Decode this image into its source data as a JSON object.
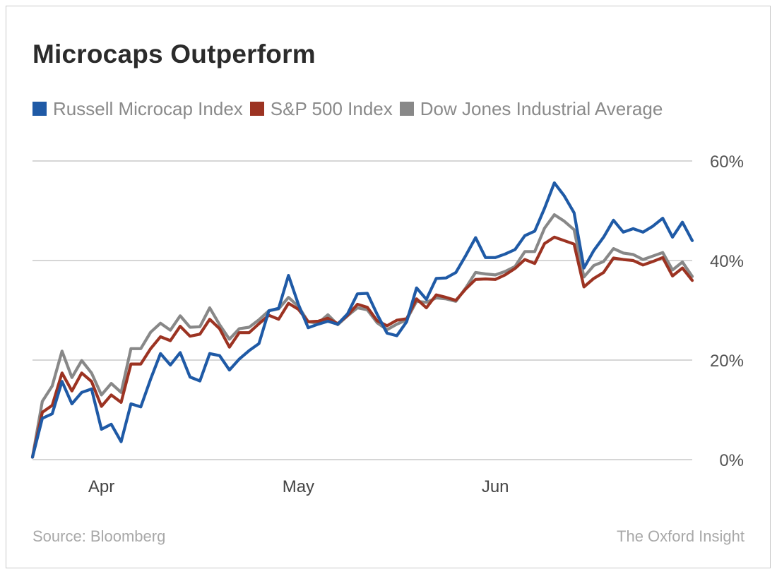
{
  "title": "Microcaps Outperform",
  "footer": {
    "source": "Source: Bloomberg",
    "brand": "The Oxford Insight"
  },
  "chart_data": {
    "type": "line",
    "title": "Microcaps Outperform",
    "xlabel": "",
    "ylabel": "",
    "ylim": [
      0,
      60
    ],
    "y_ticks": [
      0,
      20,
      40,
      60
    ],
    "y_tick_labels": [
      "0%",
      "20%",
      "40%",
      "60%"
    ],
    "x_tick_labels": [
      "Apr",
      "May",
      "Jun"
    ],
    "x_tick_indices": [
      7,
      27,
      47
    ],
    "legend_position": "top",
    "grid": true,
    "series": [
      {
        "name": "Dow Jones Industrial Average",
        "color": "#888888",
        "values": [
          0.5,
          11.7,
          14.8,
          21.8,
          16.5,
          19.9,
          17.4,
          13.0,
          15.3,
          13.5,
          22.3,
          22.3,
          25.6,
          27.4,
          26.0,
          28.9,
          26.6,
          26.7,
          30.5,
          27.1,
          24.2,
          26.3,
          26.6,
          28.1,
          29.9,
          30.3,
          32.6,
          30.8,
          27.7,
          27.4,
          29.1,
          27.1,
          28.9,
          30.5,
          30.1,
          27.5,
          26.1,
          27.2,
          28.1,
          31.8,
          31.6,
          32.5,
          32.3,
          31.8,
          34.5,
          37.6,
          37.3,
          37.1,
          37.8,
          38.8,
          41.8,
          41.8,
          46.5,
          49.2,
          47.9,
          46.2,
          36.7,
          39.0,
          39.8,
          42.4,
          41.5,
          41.2,
          40.2,
          40.9,
          41.6,
          38.1,
          39.7,
          36.8
        ]
      },
      {
        "name": "S&P 500 Index",
        "color": "#9c3322",
        "values": [
          0.5,
          9.5,
          10.9,
          17.4,
          13.8,
          17.4,
          15.7,
          10.7,
          13.0,
          11.5,
          19.2,
          19.2,
          22.3,
          24.7,
          23.9,
          26.8,
          24.8,
          25.2,
          28.2,
          26.3,
          22.6,
          25.5,
          25.5,
          27.3,
          29.0,
          28.2,
          31.4,
          30.2,
          27.7,
          27.8,
          28.4,
          27.3,
          29.0,
          31.2,
          30.6,
          27.9,
          26.9,
          28.0,
          28.3,
          32.3,
          30.5,
          33.1,
          32.6,
          32.0,
          34.3,
          36.2,
          36.3,
          36.2,
          37.1,
          38.4,
          40.2,
          39.4,
          43.4,
          44.7,
          44.0,
          43.3,
          34.7,
          36.4,
          37.6,
          40.5,
          40.2,
          40.0,
          39.1,
          39.8,
          40.6,
          36.9,
          38.5,
          36.0
        ]
      },
      {
        "name": "Russell Microcap Index",
        "color": "#1f5aa6",
        "values": [
          0.5,
          8.3,
          9.2,
          15.7,
          11.2,
          13.5,
          14.2,
          6.1,
          7.1,
          3.6,
          11.2,
          10.6,
          16.2,
          21.3,
          19.0,
          21.5,
          16.6,
          15.8,
          21.3,
          20.9,
          18.0,
          20.2,
          21.9,
          23.3,
          29.9,
          30.4,
          37.0,
          31.2,
          26.5,
          27.2,
          27.8,
          27.2,
          29.3,
          33.3,
          33.4,
          29.2,
          25.4,
          24.9,
          27.7,
          34.5,
          32.2,
          36.4,
          36.5,
          37.6,
          41.0,
          44.6,
          40.6,
          40.6,
          41.3,
          42.2,
          45.0,
          45.9,
          50.5,
          55.6,
          53.0,
          49.6,
          38.5,
          42.0,
          44.7,
          48.1,
          45.7,
          46.4,
          45.7,
          46.9,
          48.5,
          44.7,
          47.7,
          44.0
        ]
      }
    ]
  }
}
